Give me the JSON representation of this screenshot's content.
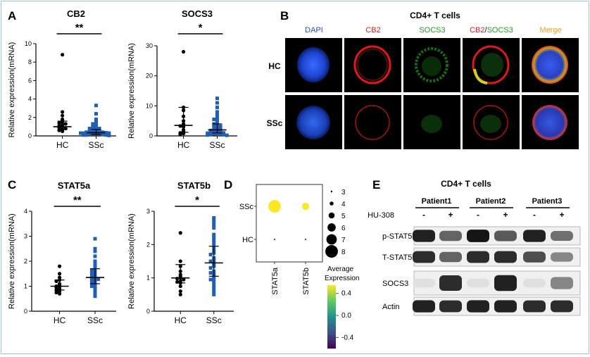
{
  "panels": {
    "A": "A",
    "B": "B",
    "C": "C",
    "D": "D",
    "E": "E"
  },
  "chart_data": [
    {
      "type": "scatter",
      "id": "cb2",
      "title": "CB2",
      "ylabel": "Relative expression(mRNA)",
      "ylim": [
        0,
        10
      ],
      "yticks": [
        "0",
        "2",
        "4",
        "6",
        "8",
        "10"
      ],
      "categories": [
        "HC",
        "SSc"
      ],
      "significance": "**",
      "groups": [
        {
          "name": "HC",
          "color": "#000000",
          "marker": "circle",
          "median": 1.0,
          "q1": 0.7,
          "q3": 1.6,
          "values": [
            8.8,
            2.6,
            2.2,
            1.8,
            1.7,
            1.5,
            1.4,
            1.3,
            1.2,
            1.1,
            1.0,
            0.9,
            0.8,
            0.7,
            0.6,
            0.5
          ]
        },
        {
          "name": "SSc",
          "color": "#1f5fb4",
          "marker": "square",
          "median": 0.35,
          "q1": 0.15,
          "q3": 0.7,
          "values": [
            3.3,
            2.4,
            1.8,
            1.6,
            1.4,
            1.3,
            1.2,
            1.1,
            1.0,
            0.9,
            0.8,
            0.8,
            0.7,
            0.7,
            0.6,
            0.6,
            0.5,
            0.5,
            0.5,
            0.4,
            0.4,
            0.4,
            0.35,
            0.3,
            0.3,
            0.3,
            0.25,
            0.2,
            0.2,
            0.2,
            0.15,
            0.1,
            0.1,
            0.1,
            0.05
          ]
        }
      ]
    },
    {
      "type": "scatter",
      "id": "socs3",
      "title": "SOCS3",
      "ylabel": "Relative expression(mRNA)",
      "ylim": [
        0,
        30
      ],
      "yticks": [
        "0",
        "10",
        "20",
        "30"
      ],
      "categories": [
        "HC",
        "SSc"
      ],
      "significance": "*",
      "groups": [
        {
          "name": "HC",
          "color": "#000000",
          "marker": "circle",
          "median": 3.5,
          "q1": 1.2,
          "q3": 9.5,
          "values": [
            28,
            9.5,
            8.5,
            6.5,
            5,
            4,
            3.6,
            3.3,
            3,
            2,
            1.5,
            1,
            0.8,
            0.5
          ]
        },
        {
          "name": "SSc",
          "color": "#1f5fb4",
          "marker": "square",
          "median": 2.0,
          "q1": 1.0,
          "q3": 4.0,
          "values": [
            12.5,
            11,
            9.5,
            8,
            7,
            6,
            5.5,
            5,
            4.5,
            4,
            3.8,
            3.5,
            3.2,
            3,
            2.8,
            2.5,
            2.3,
            2.1,
            2,
            1.8,
            1.6,
            1.5,
            1.3,
            1.2,
            1,
            0.9,
            0.8,
            0.7,
            0.6,
            0.5,
            0.4,
            0.3,
            0.2
          ]
        }
      ]
    },
    {
      "type": "scatter",
      "id": "stat5a",
      "title": "STAT5a",
      "ylabel": "Relative expression(mRNA)",
      "ylim": [
        0,
        4
      ],
      "yticks": [
        "0",
        "1",
        "2",
        "3",
        "4"
      ],
      "categories": [
        "HC",
        "SSc"
      ],
      "significance": "**",
      "groups": [
        {
          "name": "HC",
          "color": "#000000",
          "marker": "circle",
          "median": 1.0,
          "q1": 0.85,
          "q3": 1.25,
          "values": [
            1.8,
            1.5,
            1.35,
            1.25,
            1.2,
            1.1,
            1.05,
            1.0,
            0.98,
            0.95,
            0.9,
            0.85,
            0.8,
            0.75,
            0.7
          ]
        },
        {
          "name": "SSc",
          "color": "#1f5fb4",
          "marker": "square",
          "median": 1.35,
          "q1": 1.1,
          "q3": 1.7,
          "values": [
            2.9,
            2.5,
            2.4,
            2.2,
            2.0,
            1.9,
            1.8,
            1.7,
            1.65,
            1.6,
            1.55,
            1.5,
            1.45,
            1.4,
            1.38,
            1.35,
            1.3,
            1.28,
            1.25,
            1.2,
            1.15,
            1.1,
            1.05,
            1.0,
            0.95,
            0.9,
            0.8,
            0.7,
            0.6
          ]
        }
      ]
    },
    {
      "type": "scatter",
      "id": "stat5b",
      "title": "STAT5b",
      "ylabel": "Relative expression(mRNA)",
      "ylim": [
        0,
        3
      ],
      "yticks": [
        "0",
        "1",
        "2",
        "3"
      ],
      "categories": [
        "HC",
        "SSc"
      ],
      "significance": "*",
      "groups": [
        {
          "name": "HC",
          "color": "#000000",
          "marker": "circle",
          "median": 1.0,
          "q1": 0.85,
          "q3": 1.4,
          "values": [
            2.35,
            1.5,
            1.35,
            1.2,
            1.1,
            1.05,
            1.0,
            0.98,
            0.95,
            0.9,
            0.88,
            0.85,
            0.75,
            0.6,
            0.5
          ]
        },
        {
          "name": "SSc",
          "color": "#1f5fb4",
          "marker": "square",
          "median": 1.45,
          "q1": 1.05,
          "q3": 1.95,
          "values": [
            2.8,
            2.7,
            2.6,
            2.5,
            2.3,
            2.2,
            2.1,
            2.0,
            1.9,
            1.8,
            1.75,
            1.7,
            1.6,
            1.55,
            1.5,
            1.45,
            1.4,
            1.35,
            1.3,
            1.2,
            1.15,
            1.1,
            1.05,
            1.0,
            0.95,
            0.9,
            0.8,
            0.7,
            0.6,
            0.5
          ]
        }
      ]
    },
    {
      "type": "dotplot",
      "id": "dotplot",
      "rows": [
        "SSc",
        "HC"
      ],
      "columns": [
        "STAT5a",
        "STAT5b"
      ],
      "points": [
        {
          "row": "SSc",
          "col": "STAT5a",
          "size": 8,
          "expression": 0.5
        },
        {
          "row": "SSc",
          "col": "STAT5b",
          "size": 5.5,
          "expression": 0.45
        },
        {
          "row": "HC",
          "col": "STAT5a",
          "size": 3,
          "expression": -0.5
        },
        {
          "row": "HC",
          "col": "STAT5b",
          "size": 3,
          "expression": -0.5
        }
      ],
      "size_legend": [
        "3",
        "4",
        "5",
        "6",
        "7",
        "8"
      ],
      "size_values": [
        3,
        4,
        5,
        6,
        7,
        8
      ],
      "colorbar_title": "Average\nExpression",
      "colorbar_title_line1": "Average",
      "colorbar_title_line2": "Expression",
      "colorbar_ticks": [
        "0.4",
        "0.0",
        "-0.4"
      ],
      "colorbar_tick_values": [
        0.4,
        0.0,
        -0.4
      ],
      "colorbar_range": [
        -0.6,
        0.55
      ],
      "colors": [
        "#fde725",
        "#5ec962",
        "#21918c",
        "#3b528b",
        "#440154"
      ]
    }
  ],
  "panelB": {
    "title": "CD4+ T cells",
    "columns": [
      {
        "label": "DAPI",
        "color": "#1e4fd8"
      },
      {
        "label": "CB2",
        "color": "#d81e1e"
      },
      {
        "label": "SOCS3",
        "color": "#1ea01e"
      },
      {
        "label_a": "CB2",
        "label_sep": "/",
        "label_b": "SOCS3",
        "color_a": "#d81e1e",
        "color_b": "#1ea01e"
      },
      {
        "label": "Merge",
        "color": "#f0a020"
      }
    ],
    "rows": [
      "HC",
      "SSc"
    ]
  },
  "panelE": {
    "title": "CD4+ T cells",
    "patients": [
      "Patient1",
      "Patient2",
      "Patient3"
    ],
    "treatment_label": "HU-308",
    "signs": [
      "-",
      "+",
      "-",
      "+",
      "-",
      "+"
    ],
    "bands": [
      {
        "label": "p-STAT5",
        "intensities": [
          0.9,
          0.6,
          0.95,
          0.65,
          0.9,
          0.55
        ]
      },
      {
        "label": "T-STAT5",
        "intensities": [
          0.85,
          0.6,
          0.85,
          0.85,
          0.7,
          0.45
        ]
      },
      {
        "label": "SOCS3",
        "intensities": [
          0.05,
          0.85,
          0.05,
          0.9,
          0.05,
          0.45
        ]
      },
      {
        "label": "Actin",
        "intensities": [
          0.9,
          0.85,
          0.9,
          0.9,
          0.85,
          0.85
        ]
      }
    ]
  }
}
